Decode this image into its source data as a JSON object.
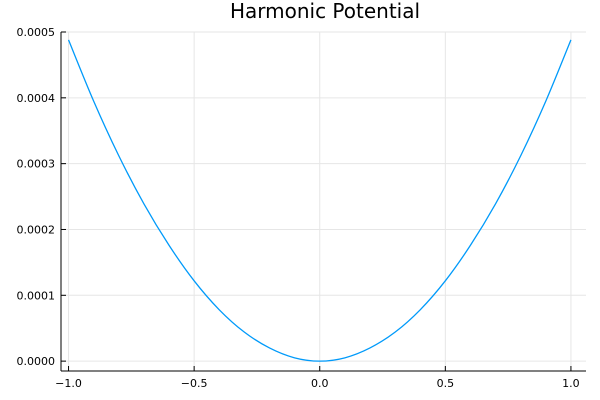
{
  "chart_data": {
    "type": "line",
    "title": "Harmonic Potential",
    "xlabel": "",
    "ylabel": "",
    "xlim": [
      -1.03,
      1.06
    ],
    "ylim": [
      -1.5e-05,
      0.0005
    ],
    "grid": true,
    "legend": "none",
    "x_ticks": [
      -1.0,
      -0.5,
      0.0,
      0.5,
      1.0
    ],
    "x_tick_labels": [
      "−1.0",
      "−0.5",
      "0.0",
      "0.5",
      "1.0"
    ],
    "y_ticks": [
      0.0,
      0.0001,
      0.0002,
      0.0003,
      0.0004,
      0.0005
    ],
    "y_tick_labels": [
      "0.0000",
      "0.0001",
      "0.0002",
      "0.0003",
      "0.0004",
      "0.0005"
    ],
    "series": [
      {
        "color": "#009AFA",
        "x": [
          -1.0,
          -0.9,
          -0.8,
          -0.7,
          -0.6,
          -0.5,
          -0.4,
          -0.3,
          -0.2,
          -0.1,
          0.0,
          0.1,
          0.2,
          0.3,
          0.4,
          0.5,
          0.6,
          0.7,
          0.8,
          0.9,
          1.0
        ],
        "y": [
          0.000488,
          0.000395,
          0.000312,
          0.000239,
          0.000176,
          0.000122,
          7.8e-05,
          4.4e-05,
          2e-05,
          5e-06,
          0.0,
          5e-06,
          2e-05,
          4.4e-05,
          7.8e-05,
          0.000122,
          0.000176,
          0.000239,
          0.000312,
          0.000395,
          0.000488
        ]
      }
    ]
  }
}
